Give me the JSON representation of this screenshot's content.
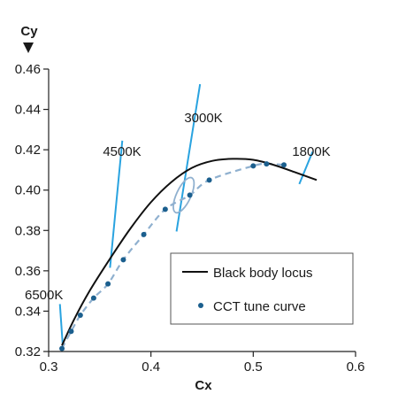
{
  "chart_data": {
    "type": "line",
    "xlabel": "Cx",
    "ylabel": "Cy",
    "xlim": [
      0.3,
      0.6
    ],
    "ylim": [
      0.32,
      0.46
    ],
    "x_ticks": [
      "0.3",
      "0.4",
      "0.5",
      "0.6"
    ],
    "y_ticks": [
      "0.32",
      "0.34",
      "0.36",
      "0.38",
      "0.40",
      "0.42",
      "0.44",
      "0.46"
    ],
    "grid": false,
    "legend_position": "bottom-right",
    "series": [
      {
        "name": "Black body locus",
        "style": "solid-line",
        "color": "#111111",
        "x": [
          0.313,
          0.325,
          0.34,
          0.36,
          0.38,
          0.4,
          0.42,
          0.44,
          0.46,
          0.48,
          0.5,
          0.52,
          0.54,
          0.562
        ],
        "y": [
          0.323,
          0.336,
          0.35,
          0.366,
          0.381,
          0.394,
          0.404,
          0.411,
          0.4145,
          0.4155,
          0.415,
          0.4125,
          0.409,
          0.405
        ]
      },
      {
        "name": "CCT tune curve",
        "style": "dots-with-dashed-line",
        "color": "#1b5f8e",
        "line_color": "#8fb0cf",
        "x": [
          0.313,
          0.322,
          0.331,
          0.344,
          0.358,
          0.373,
          0.393,
          0.414,
          0.438,
          0.457,
          0.5,
          0.513,
          0.53
        ],
        "y": [
          0.3215,
          0.33,
          0.338,
          0.3465,
          0.3535,
          0.3655,
          0.378,
          0.3905,
          0.3975,
          0.405,
          0.412,
          0.413,
          0.4125
        ]
      }
    ],
    "annotations": [
      {
        "text": "6500K",
        "line_x": [
          0.311,
          0.314
        ],
        "line_y": [
          0.3435,
          0.3215
        ]
      },
      {
        "text": "4500K",
        "line_x": [
          0.372,
          0.36
        ],
        "line_y": [
          0.4245,
          0.3615
        ]
      },
      {
        "text": "3000K",
        "line_x": [
          0.448,
          0.425
        ],
        "line_y": [
          0.4525,
          0.3795
        ]
      },
      {
        "text": "1800K",
        "line_x": [
          0.558,
          0.545
        ],
        "line_y": [
          0.419,
          0.403
        ]
      }
    ],
    "highlight_ellipse": {
      "cx": 0.432,
      "cy": 0.3975,
      "rx": 0.007,
      "ry": 0.0095,
      "rotate_deg": 25,
      "color": "#8fb0cf"
    }
  }
}
